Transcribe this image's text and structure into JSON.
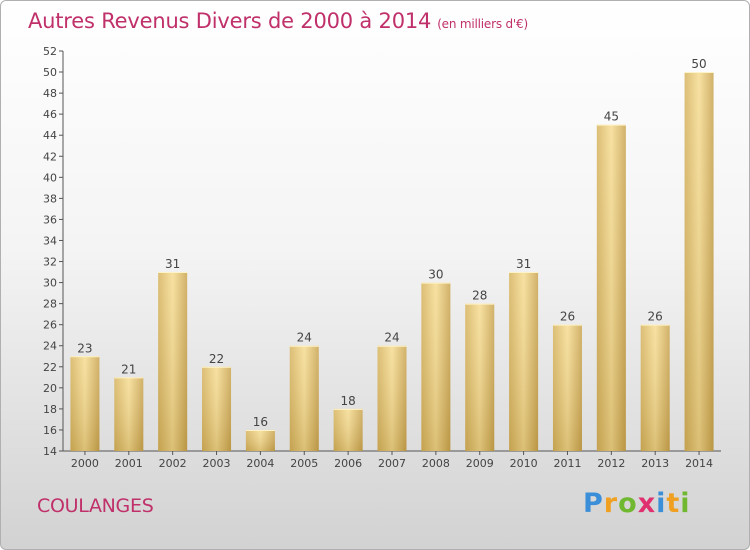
{
  "page": {
    "title": "Autres Revenus Divers de 2000 à 2014",
    "subtitle": "(en milliers d'€)",
    "town": "COULANGES",
    "logo": {
      "letters": [
        "P",
        "r",
        "o",
        "x",
        "i",
        "t",
        "i"
      ],
      "colors": [
        "#3a8fd8",
        "#f0a020",
        "#70b830",
        "#e03070",
        "#3a8fd8",
        "#f0a020",
        "#70b830"
      ]
    }
  },
  "chart_data": {
    "type": "bar",
    "title": "Autres Revenus Divers de 2000 à 2014",
    "subtitle": "(en milliers d'€)",
    "categories": [
      "2000",
      "2001",
      "2002",
      "2003",
      "2004",
      "2005",
      "2006",
      "2007",
      "2008",
      "2009",
      "2010",
      "2011",
      "2012",
      "2013",
      "2014"
    ],
    "values": [
      23,
      21,
      31,
      22,
      16,
      24,
      18,
      24,
      30,
      28,
      31,
      26,
      45,
      26,
      50
    ],
    "xlabel": "",
    "ylabel": "",
    "ylim": [
      14,
      52
    ],
    "ytick_step": 2,
    "grid": false,
    "bar_color": "#e8c878"
  }
}
